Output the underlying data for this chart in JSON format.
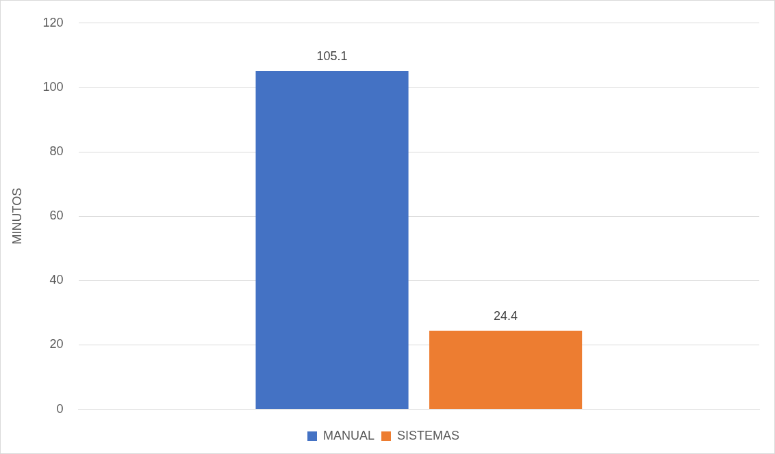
{
  "chart_data": {
    "type": "bar",
    "categories": [
      null
    ],
    "series": [
      {
        "name": "MANUAL",
        "color": "#4472c4",
        "values": [
          105.1
        ]
      },
      {
        "name": "SISTEMAS",
        "color": "#ed7d31",
        "values": [
          24.4
        ]
      }
    ],
    "ylabel": "MINUTOS",
    "ylim": [
      0,
      120
    ],
    "yticks": [
      0,
      20,
      40,
      60,
      80,
      100,
      120
    ],
    "grid": "y",
    "legend": "bottom",
    "data_labels": true
  }
}
